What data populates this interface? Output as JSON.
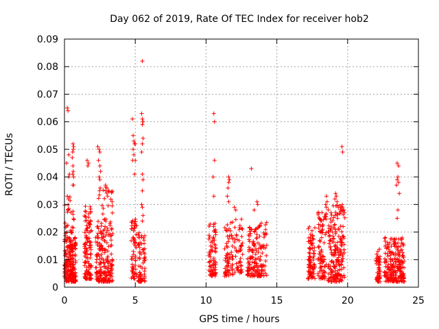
{
  "chart_data": {
    "type": "scatter",
    "title": "Day 062 of 2019, Rate Of TEC Index for receiver hob2",
    "xlabel": "GPS time / hours",
    "ylabel": "ROTI / TECUs",
    "xlim": [
      0,
      25
    ],
    "ylim": [
      0,
      0.09
    ],
    "xticks": [
      0,
      5,
      10,
      15,
      20,
      25
    ],
    "xtick_labels": [
      "0",
      "5",
      "10",
      "15",
      "20",
      "25"
    ],
    "yticks": [
      0,
      0.01,
      0.02,
      0.03,
      0.04,
      0.05,
      0.06,
      0.07,
      0.08,
      0.09
    ],
    "ytick_labels": [
      "0",
      "0.01",
      "0.02",
      "0.03",
      "0.04",
      "0.05",
      "0.06",
      "0.07",
      "0.08",
      "0.09"
    ],
    "grid": true,
    "marker": "plus",
    "color": "#ff0000",
    "clusters": [
      {
        "x_range": [
          0.0,
          0.8
        ],
        "low": 0.002,
        "high": 0.018,
        "count": 220
      },
      {
        "x_range": [
          0.0,
          0.8
        ],
        "low": 0.018,
        "high": 0.033,
        "count": 30
      },
      {
        "x_range": [
          1.4,
          1.9
        ],
        "low": 0.003,
        "high": 0.03,
        "count": 120
      },
      {
        "x_range": [
          2.2,
          3.4
        ],
        "low": 0.002,
        "high": 0.02,
        "count": 180
      },
      {
        "x_range": [
          2.3,
          3.4
        ],
        "low": 0.02,
        "high": 0.037,
        "count": 40
      },
      {
        "x_range": [
          4.7,
          5.1
        ],
        "low": 0.003,
        "high": 0.025,
        "count": 60
      },
      {
        "x_range": [
          5.2,
          5.7
        ],
        "low": 0.002,
        "high": 0.02,
        "count": 70
      },
      {
        "x_range": [
          10.2,
          10.7
        ],
        "low": 0.004,
        "high": 0.025,
        "count": 80
      },
      {
        "x_range": [
          11.3,
          11.9
        ],
        "low": 0.004,
        "high": 0.024,
        "count": 70
      },
      {
        "x_range": [
          12.0,
          12.6
        ],
        "low": 0.005,
        "high": 0.025,
        "count": 50
      },
      {
        "x_range": [
          12.9,
          14.3
        ],
        "low": 0.004,
        "high": 0.024,
        "count": 160
      },
      {
        "x_range": [
          17.2,
          17.7
        ],
        "low": 0.003,
        "high": 0.022,
        "count": 90
      },
      {
        "x_range": [
          17.9,
          18.5
        ],
        "low": 0.003,
        "high": 0.028,
        "count": 90
      },
      {
        "x_range": [
          18.6,
          19.8
        ],
        "low": 0.002,
        "high": 0.03,
        "count": 200
      },
      {
        "x_range": [
          22.0,
          22.3
        ],
        "low": 0.002,
        "high": 0.014,
        "count": 50
      },
      {
        "x_range": [
          22.6,
          24.0
        ],
        "low": 0.002,
        "high": 0.018,
        "count": 220
      }
    ],
    "outliers": [
      [
        0.2,
        0.065
      ],
      [
        0.25,
        0.064
      ],
      [
        0.3,
        0.048
      ],
      [
        0.15,
        0.045
      ],
      [
        0.35,
        0.041
      ],
      [
        0.3,
        0.04
      ],
      [
        0.2,
        0.033
      ],
      [
        0.28,
        0.032
      ],
      [
        0.6,
        0.052
      ],
      [
        0.65,
        0.051
      ],
      [
        0.62,
        0.05
      ],
      [
        0.58,
        0.049
      ],
      [
        0.55,
        0.047
      ],
      [
        0.6,
        0.044
      ],
      [
        0.62,
        0.042
      ],
      [
        0.58,
        0.041
      ],
      [
        0.65,
        0.04
      ],
      [
        0.6,
        0.037
      ],
      [
        0.63,
        0.037
      ],
      [
        1.6,
        0.046
      ],
      [
        1.65,
        0.044
      ],
      [
        1.7,
        0.045
      ],
      [
        2.35,
        0.051
      ],
      [
        2.45,
        0.05
      ],
      [
        2.5,
        0.049
      ],
      [
        2.4,
        0.046
      ],
      [
        2.5,
        0.044
      ],
      [
        2.55,
        0.042
      ],
      [
        2.45,
        0.04
      ],
      [
        2.5,
        0.039
      ],
      [
        2.52,
        0.036
      ],
      [
        2.48,
        0.035
      ],
      [
        2.9,
        0.037
      ],
      [
        3.0,
        0.036
      ],
      [
        3.1,
        0.035
      ],
      [
        3.05,
        0.033
      ],
      [
        4.8,
        0.061
      ],
      [
        4.85,
        0.055
      ],
      [
        4.9,
        0.053
      ],
      [
        4.95,
        0.052
      ],
      [
        5.0,
        0.052
      ],
      [
        4.85,
        0.05
      ],
      [
        4.9,
        0.048
      ],
      [
        4.82,
        0.046
      ],
      [
        5.0,
        0.046
      ],
      [
        4.95,
        0.041
      ],
      [
        5.5,
        0.082
      ],
      [
        5.45,
        0.063
      ],
      [
        5.5,
        0.061
      ],
      [
        5.55,
        0.06
      ],
      [
        5.5,
        0.059
      ],
      [
        5.55,
        0.054
      ],
      [
        5.5,
        0.052
      ],
      [
        5.45,
        0.049
      ],
      [
        5.5,
        0.041
      ],
      [
        5.55,
        0.039
      ],
      [
        5.5,
        0.035
      ],
      [
        5.45,
        0.03
      ],
      [
        5.5,
        0.029
      ],
      [
        5.55,
        0.026
      ],
      [
        5.5,
        0.024
      ],
      [
        10.55,
        0.063
      ],
      [
        10.6,
        0.06
      ],
      [
        10.6,
        0.046
      ],
      [
        10.5,
        0.04
      ],
      [
        10.55,
        0.033
      ],
      [
        11.6,
        0.04
      ],
      [
        11.65,
        0.039
      ],
      [
        11.6,
        0.038
      ],
      [
        11.55,
        0.036
      ],
      [
        11.5,
        0.033
      ],
      [
        11.6,
        0.031
      ],
      [
        12.0,
        0.029
      ],
      [
        12.1,
        0.028
      ],
      [
        13.2,
        0.043
      ],
      [
        13.6,
        0.031
      ],
      [
        13.65,
        0.03
      ],
      [
        13.4,
        0.028
      ],
      [
        18.5,
        0.033
      ],
      [
        18.55,
        0.031
      ],
      [
        18.45,
        0.03
      ],
      [
        18.5,
        0.029
      ],
      [
        19.15,
        0.034
      ],
      [
        19.2,
        0.033
      ],
      [
        19.1,
        0.032
      ],
      [
        19.25,
        0.031
      ],
      [
        19.6,
        0.051
      ],
      [
        19.65,
        0.049
      ],
      [
        23.5,
        0.045
      ],
      [
        23.6,
        0.044
      ],
      [
        23.55,
        0.04
      ],
      [
        23.5,
        0.039
      ],
      [
        23.6,
        0.038
      ],
      [
        23.45,
        0.037
      ],
      [
        23.65,
        0.034
      ],
      [
        23.55,
        0.028
      ],
      [
        23.5,
        0.025
      ]
    ]
  }
}
